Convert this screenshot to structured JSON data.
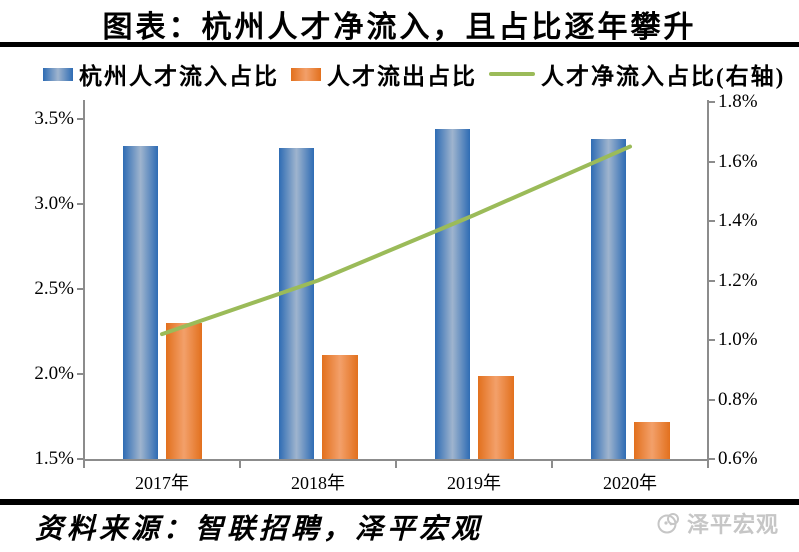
{
  "page": {
    "title": "图表：杭州人才净流入，且占比逐年攀升",
    "source_note": "资料来源：智联招聘，泽平宏观",
    "watermark_text": "泽平宏观"
  },
  "legend": {
    "items": [
      {
        "label": "杭州人才流入占比",
        "swatch": "bar-blue"
      },
      {
        "label": "人才流出占比",
        "swatch": "bar-orange"
      },
      {
        "label": "人才净流入占比(右轴)",
        "swatch": "line-green"
      }
    ]
  },
  "colors": {
    "bar_blue_edge": "#2e6cb4",
    "bar_blue_mid": "#9fb4ce",
    "bar_orange_edge": "#e2701d",
    "bar_orange_mid": "#f3a06a",
    "line_green": "#9bbb59",
    "axis_gray": "#8c8c8c",
    "watermark_gray": "#c6c6c6"
  },
  "chart_data": {
    "type": "bar",
    "subtype": "grouped-bars-with-line-dual-axis",
    "title": "图表：杭州人才净流入，且占比逐年攀升",
    "categories": [
      "2017年",
      "2018年",
      "2019年",
      "2020年"
    ],
    "series": [
      {
        "name": "杭州人才流入占比",
        "type": "bar",
        "axis": "left",
        "values": [
          3.34,
          3.33,
          3.44,
          3.38
        ]
      },
      {
        "name": "人才流出占比",
        "type": "bar",
        "axis": "left",
        "values": [
          2.3,
          2.11,
          1.99,
          1.72
        ]
      },
      {
        "name": "人才净流入占比(右轴)",
        "type": "line",
        "axis": "right",
        "values": [
          1.02,
          1.2,
          1.42,
          1.65
        ]
      }
    ],
    "left_axis": {
      "min": 1.5,
      "max": 3.5,
      "ticks": [
        {
          "label": "3.5%",
          "value": 3.5
        },
        {
          "label": "3.0%",
          "value": 3.0
        },
        {
          "label": "2.5%",
          "value": 2.5
        },
        {
          "label": "2.0%",
          "value": 2.0
        },
        {
          "label": "1.5%",
          "value": 1.5
        }
      ]
    },
    "right_axis": {
      "min": 0.6,
      "max": 1.8,
      "ticks": [
        {
          "label": "1.8%",
          "value": 1.8
        },
        {
          "label": "1.6%",
          "value": 1.6
        },
        {
          "label": "1.4%",
          "value": 1.4
        },
        {
          "label": "1.2%",
          "value": 1.2
        },
        {
          "label": "1.0%",
          "value": 1.0
        },
        {
          "label": "0.8%",
          "value": 0.8
        },
        {
          "label": "0.6%",
          "value": 0.6
        }
      ]
    },
    "legend_position": "top",
    "grid": false
  }
}
